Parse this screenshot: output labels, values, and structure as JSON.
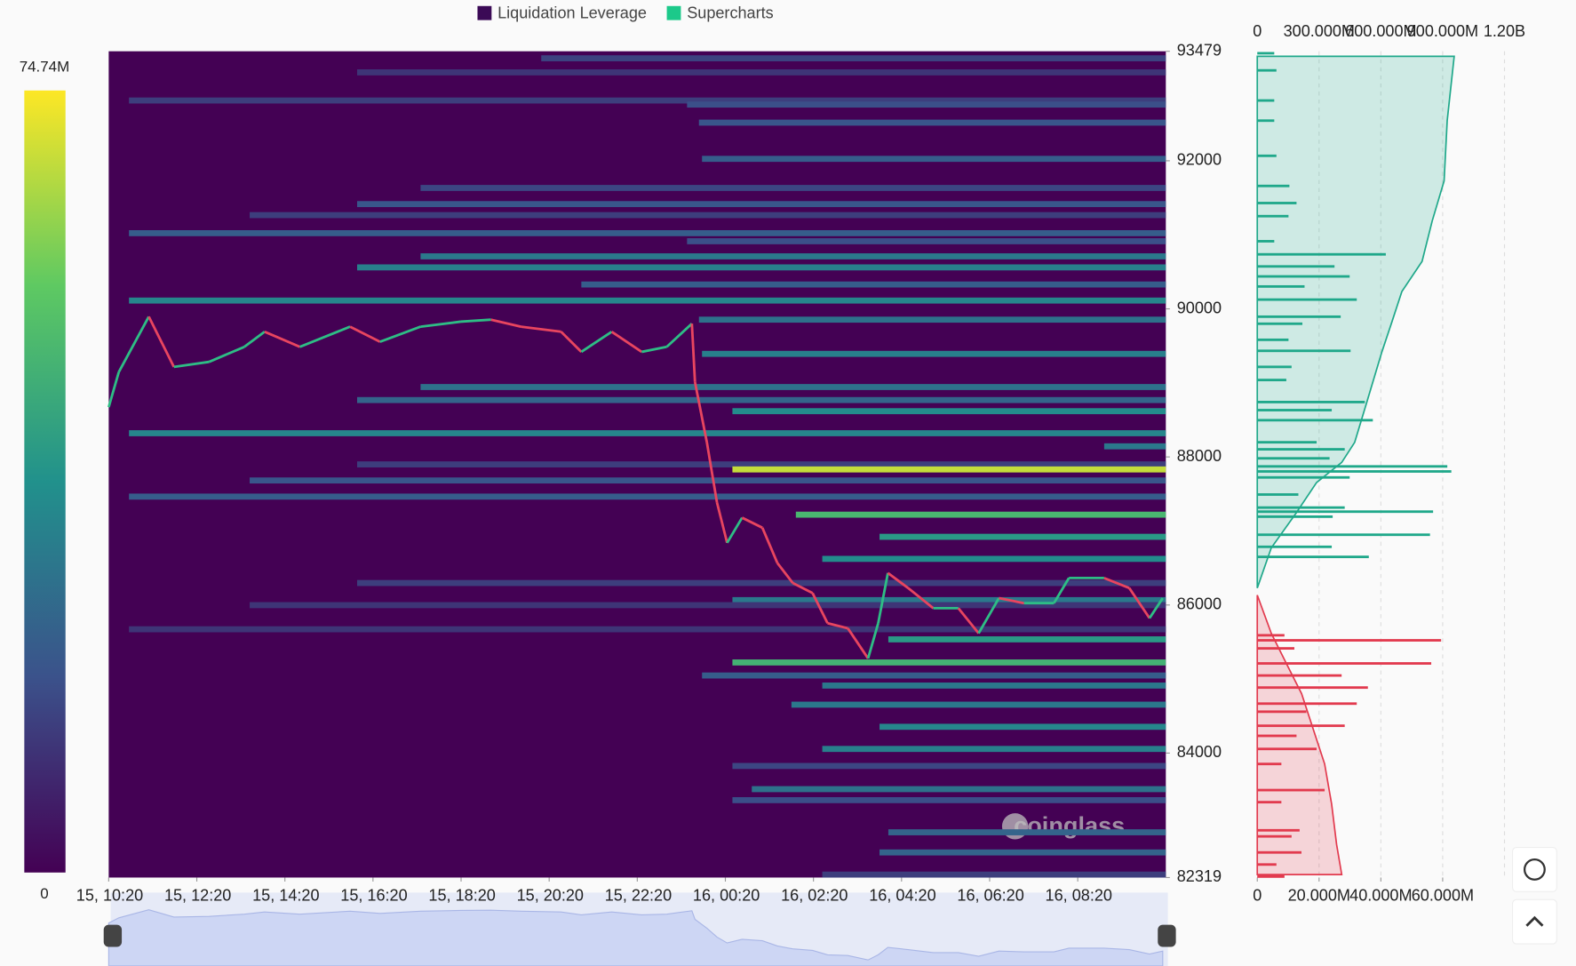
{
  "chart_data": {
    "type": "heatmap",
    "legend": [
      {
        "name": "Liquidation Leverage",
        "color": "#3b0a56"
      },
      {
        "name": "Supercharts",
        "color": "#1cc98a"
      }
    ],
    "colorbar": {
      "max": {
        "value": 74.74,
        "label": "74.74M"
      },
      "min": 0
    },
    "xlim": [
      0,
      24
    ],
    "xticks": [
      {
        "value": 0,
        "label": "15, 10:20"
      },
      {
        "value": 2,
        "label": "15, 12:20"
      },
      {
        "value": 4,
        "label": "15, 14:20"
      },
      {
        "value": 6,
        "label": "15, 16:20"
      },
      {
        "value": 8,
        "label": "15, 18:20"
      },
      {
        "value": 10,
        "label": "15, 20:20"
      },
      {
        "value": 12,
        "label": "15, 22:20"
      },
      {
        "value": 14,
        "label": "16, 00:20"
      },
      {
        "value": 16,
        "label": "16, 02:20"
      },
      {
        "value": 18,
        "label": "16, 04:20"
      },
      {
        "value": 20,
        "label": "16, 06:20"
      },
      {
        "value": 22,
        "label": "16, 08:20"
      }
    ],
    "ylim": [
      82319,
      93479
    ],
    "yticks": [
      93479,
      92000,
      90000,
      88000,
      86000,
      84000,
      82319
    ],
    "heat_bands": {
      "price": [
        93384,
        93194,
        92814,
        92759,
        92515,
        92026,
        91633,
        91415,
        91266,
        91022,
        90913,
        90709,
        90560,
        90329,
        90112,
        89854,
        89392,
        88944,
        88768,
        88618,
        88320,
        88143,
        87899,
        87831,
        87682,
        87464,
        87220,
        86921,
        86623,
        86297,
        86066,
        85998,
        85672,
        85536,
        85224,
        85048,
        84912,
        84654,
        84355,
        84056,
        83826,
        83513,
        83364,
        82930,
        82658,
        82359
      ],
      "start": [
        9.82,
        5.64,
        0.46,
        13.13,
        13.4,
        13.47,
        7.08,
        5.64,
        3.2,
        0.46,
        13.13,
        7.08,
        5.64,
        10.73,
        0.46,
        13.4,
        13.47,
        7.08,
        5.64,
        14.16,
        0.46,
        22.6,
        5.64,
        14.16,
        3.2,
        0.46,
        15.6,
        17.5,
        16.2,
        5.64,
        14.16,
        3.2,
        0.46,
        17.7,
        14.16,
        13.47,
        16.2,
        15.5,
        17.5,
        16.2,
        14.16,
        14.6,
        14.16,
        17.7,
        17.5,
        16.2
      ],
      "values": [
        15,
        12,
        14,
        18,
        20,
        22,
        16,
        20,
        14,
        22,
        18,
        30,
        32,
        22,
        34,
        28,
        32,
        28,
        24,
        36,
        34,
        30,
        14,
        68,
        20,
        22,
        50,
        40,
        36,
        14,
        30,
        12,
        12,
        40,
        48,
        22,
        30,
        30,
        34,
        32,
        16,
        28,
        18,
        24,
        24,
        14
      ]
    },
    "price": {
      "up_color": "#2ebd85",
      "down_color": "#e8455f",
      "x": [
        0,
        0.23,
        0.91,
        1.48,
        2.28,
        3.08,
        3.54,
        4.34,
        5.48,
        6.16,
        7.08,
        7.99,
        8.68,
        9.36,
        10.27,
        10.73,
        11.42,
        12.1,
        12.67,
        13.24,
        13.31,
        13.58,
        13.81,
        14.04,
        14.38,
        14.84,
        15.18,
        15.53,
        15.98,
        16.32,
        16.78,
        17.24,
        17.47,
        17.69,
        18.15,
        18.72,
        19.29,
        19.75,
        20.21,
        20.78,
        21.46,
        21.8,
        22.6,
        23.17,
        23.63,
        23.93
      ],
      "values": [
        88673,
        89148,
        89895,
        89216,
        89284,
        89487,
        89691,
        89487,
        89759,
        89555,
        89759,
        89827,
        89854,
        89759,
        89691,
        89419,
        89691,
        89419,
        89487,
        89800,
        89012,
        88198,
        87383,
        86840,
        87179,
        87044,
        86568,
        86297,
        86161,
        85754,
        85686,
        85278,
        85754,
        86432,
        86229,
        85957,
        85957,
        85618,
        86093,
        86025,
        86025,
        86365,
        86365,
        86229,
        85822,
        86093
      ]
    },
    "profile": {
      "top_xlim": [
        0,
        1200
      ],
      "top_xticks": [
        0,
        {
          "value": 300,
          "label": "300.000M"
        },
        {
          "value": 600,
          "label": "600.000M"
        },
        {
          "value": 900,
          "label": "900.000M"
        },
        {
          "value": 1200,
          "label": "1.20B"
        }
      ],
      "xlim": [
        0,
        80
      ],
      "xticks": [
        0,
        {
          "value": 20,
          "label": "20.000M"
        },
        {
          "value": 40,
          "label": "40.000M"
        },
        {
          "value": 60,
          "label": "60.000M"
        }
      ],
      "short": {
        "color": "#1fa88a",
        "price": [
          93452,
          93221,
          92814,
          92542,
          92067,
          91660,
          91429,
          91252,
          90913,
          90736,
          90573,
          90438,
          90302,
          90125,
          89894,
          89799,
          89582,
          89433,
          89216,
          89039,
          88741,
          88632,
          88496,
          88198,
          88103,
          87981,
          87872,
          87804,
          87723,
          87492,
          87316,
          87261,
          87193,
          86949,
          86786,
          86650
        ],
        "values": [
          5.5,
          6.2,
          5.5,
          5.5,
          6.2,
          10.4,
          12.7,
          10.1,
          5.5,
          41.6,
          25.0,
          29.9,
          15.3,
          32.2,
          27.0,
          14.6,
          10.1,
          30.2,
          11.1,
          9.4,
          34.8,
          24.1,
          37.4,
          19.2,
          28.3,
          23.4,
          61.5,
          62.8,
          29.9,
          13.3,
          28.3,
          56.9,
          24.4,
          55.9,
          24.1,
          36.1
        ]
      },
      "long": {
        "color": "#e23a4e",
        "price": [
          85591,
          85523,
          85414,
          85211,
          85048,
          84885,
          84668,
          84559,
          84369,
          84233,
          84056,
          83853,
          83500,
          83337,
          82957,
          82875,
          82658,
          82495,
          82332
        ],
        "values": [
          8.8,
          59.5,
          12.0,
          56.3,
          27.3,
          35.8,
          32.2,
          15.9,
          28.3,
          12.7,
          19.2,
          7.8,
          21.8,
          7.8,
          13.7,
          11.1,
          14.3,
          6.2,
          8.8
        ]
      },
      "short_cumulative": {
        "price": [
          86229,
          86772,
          87247,
          87655,
          87926,
          88198,
          88741,
          89419,
          89827,
          90234,
          90641,
          91185,
          91728,
          92542,
          93411
        ],
        "values": [
          0,
          68,
          190,
          288,
          410,
          473,
          532,
          605,
          654,
          702,
          800,
          849,
          907,
          922,
          956
        ]
      },
      "long_cumulative": {
        "price": [
          86134,
          85618,
          85211,
          84803,
          84396,
          83853,
          83310,
          82767,
          82359
        ],
        "values": [
          0,
          68,
          141,
          215,
          263,
          327,
          361,
          385,
          410
        ]
      }
    },
    "watermark": "coinglass"
  }
}
